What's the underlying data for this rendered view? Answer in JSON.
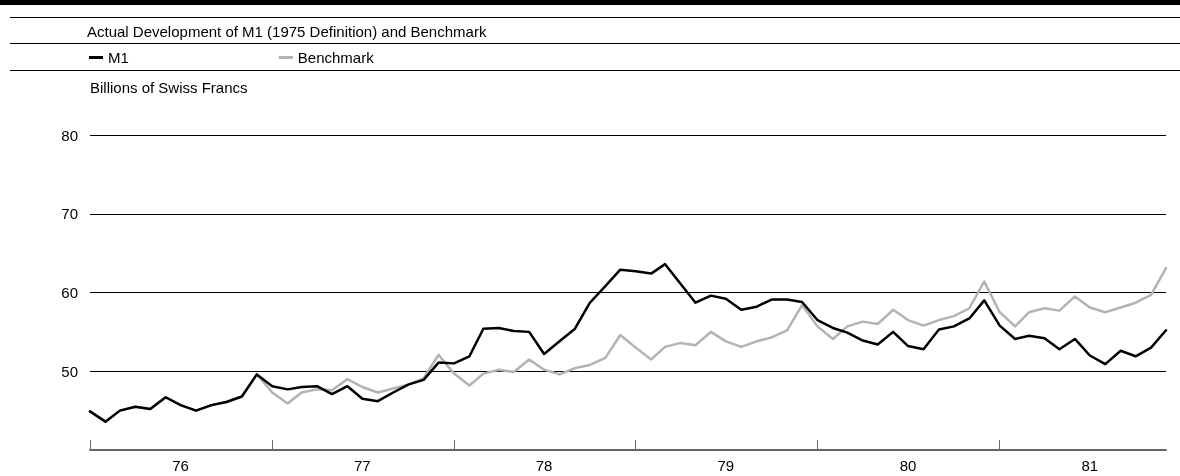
{
  "chart_data": {
    "type": "line",
    "title": "Actual Development of M1 (1975 Definition) and Benchmark",
    "ylabel": "Billions of Swiss Francs",
    "x": [
      "1976-01",
      "1976-02",
      "1976-03",
      "1976-04",
      "1976-05",
      "1976-06",
      "1976-07",
      "1976-08",
      "1976-09",
      "1976-10",
      "1976-11",
      "1976-12",
      "1977-01",
      "1977-02",
      "1977-03",
      "1977-04",
      "1977-05",
      "1977-06",
      "1977-07",
      "1977-08",
      "1977-09",
      "1977-10",
      "1977-11",
      "1977-12",
      "1978-01",
      "1978-02",
      "1978-03",
      "1978-04",
      "1978-05",
      "1978-06",
      "1978-07",
      "1978-08",
      "1978-09",
      "1978-10",
      "1978-11",
      "1978-12",
      "1979-01",
      "1979-02",
      "1979-03",
      "1979-04",
      "1979-05",
      "1979-06",
      "1979-07",
      "1979-08",
      "1979-09",
      "1979-10",
      "1979-11",
      "1979-12",
      "1980-01",
      "1980-02",
      "1980-03",
      "1980-04",
      "1980-05",
      "1980-06",
      "1980-07",
      "1980-08",
      "1980-09",
      "1980-10",
      "1980-11",
      "1980-12",
      "1981-01",
      "1981-02",
      "1981-03",
      "1981-04",
      "1981-05",
      "1981-06",
      "1981-07",
      "1981-08",
      "1981-09",
      "1981-10",
      "1981-11",
      "1981-12"
    ],
    "series": [
      {
        "name": "M1",
        "color": "#000000",
        "values": [
          44.9,
          43.6,
          45.0,
          45.5,
          45.2,
          46.7,
          45.7,
          45.0,
          45.7,
          46.1,
          46.8,
          49.6,
          48.1,
          47.7,
          48.0,
          48.1,
          47.1,
          48.1,
          46.5,
          46.2,
          47.3,
          48.3,
          48.9,
          51.1,
          51.0,
          51.9,
          55.4,
          55.5,
          55.1,
          55.0,
          52.2,
          53.8,
          55.4,
          58.7,
          60.8,
          62.9,
          62.7,
          62.4,
          63.6,
          61.1,
          58.7,
          59.6,
          59.2,
          57.8,
          58.2,
          59.1,
          59.1,
          58.8,
          56.5,
          55.5,
          54.9,
          53.9,
          53.4,
          55.0,
          53.2,
          52.8,
          55.3,
          55.7,
          56.7,
          59.0,
          55.8,
          54.1,
          54.5,
          54.2,
          52.8,
          54.1,
          52.0,
          50.9,
          52.6,
          51.9,
          53.0,
          55.2
        ]
      },
      {
        "name": "Benchmark",
        "color": "#b3b3b3",
        "values": [
          44.9,
          43.6,
          45.0,
          45.5,
          45.2,
          46.7,
          45.7,
          45.0,
          45.7,
          46.1,
          46.8,
          49.6,
          47.3,
          45.9,
          47.3,
          47.7,
          47.6,
          49.0,
          48.0,
          47.3,
          47.8,
          48.3,
          49.1,
          52.1,
          49.7,
          48.2,
          49.7,
          50.2,
          49.9,
          51.5,
          50.2,
          49.6,
          50.4,
          50.8,
          51.7,
          54.6,
          53.0,
          51.5,
          53.1,
          53.6,
          53.3,
          55.0,
          53.8,
          53.1,
          53.8,
          54.3,
          55.2,
          58.4,
          55.7,
          54.1,
          55.7,
          56.3,
          56.0,
          57.8,
          56.5,
          55.8,
          56.5,
          57.0,
          58.0,
          61.4,
          57.5,
          55.7,
          57.5,
          58.0,
          57.7,
          59.5,
          58.1,
          57.5,
          58.1,
          58.7,
          59.7,
          63.1
        ]
      }
    ],
    "xlim": [
      "1976-01",
      "1981-12"
    ],
    "xticks": [
      {
        "value": "1976-01",
        "label": null
      },
      {
        "value": "1976-07",
        "label": "76"
      },
      {
        "value": "1977-01",
        "label": null
      },
      {
        "value": "1977-07",
        "label": "77"
      },
      {
        "value": "1978-01",
        "label": null
      },
      {
        "value": "1978-07",
        "label": "78"
      },
      {
        "value": "1979-01",
        "label": null
      },
      {
        "value": "1979-07",
        "label": "79"
      },
      {
        "value": "1980-01",
        "label": null
      },
      {
        "value": "1980-07",
        "label": "80"
      },
      {
        "value": "1981-01",
        "label": null
      },
      {
        "value": "1981-07",
        "label": "81"
      }
    ],
    "ylim": [
      40,
      80
    ],
    "yticks": [
      50,
      60,
      70,
      80
    ],
    "grid": "y",
    "legend": "top left",
    "marker": "none",
    "line_style": "solid"
  }
}
